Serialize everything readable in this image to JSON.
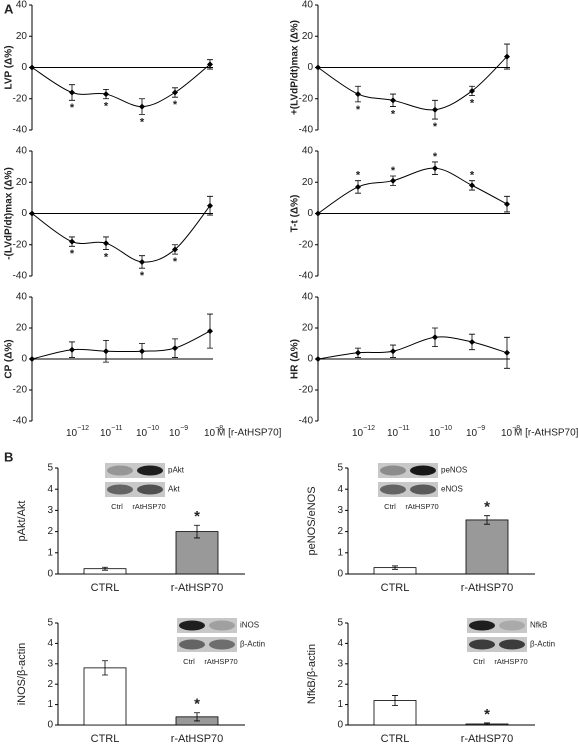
{
  "panels": [
    "A",
    "B"
  ],
  "chart_data": [
    {
      "type": "line",
      "ylabel": "LVP (Δ%)",
      "values": [
        0,
        -16,
        -17,
        -25,
        -16,
        2
      ],
      "errors": [
        null,
        5,
        3,
        5,
        3,
        3
      ],
      "markers": [
        null,
        "*",
        "*",
        "*",
        "*",
        null
      ],
      "ylim": [
        -40,
        40
      ],
      "yticks": [
        -40,
        -20,
        0,
        20,
        40
      ]
    },
    {
      "type": "line",
      "ylabel": "+(LVdP/dt)max (Δ%)",
      "values": [
        0,
        -17,
        -21,
        -27,
        -15,
        7
      ],
      "errors": [
        null,
        5,
        4,
        6,
        3,
        8
      ],
      "markers": [
        null,
        "*",
        "*",
        "*",
        "*",
        null
      ],
      "ylim": [
        -40,
        40
      ],
      "yticks": [
        -40,
        -20,
        0,
        20,
        40
      ]
    },
    {
      "type": "line",
      "ylabel": "-(LVdP/dt)max (Δ%)",
      "values": [
        0,
        -18,
        -19,
        -31,
        -23,
        5
      ],
      "errors": [
        null,
        3,
        4,
        4,
        3,
        6
      ],
      "markers": [
        null,
        "*",
        "*",
        "*",
        "*",
        null
      ],
      "ylim": [
        -40,
        40
      ],
      "yticks": [
        -40,
        -20,
        0,
        20,
        40
      ]
    },
    {
      "type": "line",
      "ylabel": "T-t (Δ%)",
      "values": [
        0,
        17,
        21,
        29,
        18,
        6
      ],
      "errors": [
        null,
        4,
        3,
        4,
        3,
        5
      ],
      "markers": [
        null,
        "*",
        "*",
        "*",
        "*",
        null
      ],
      "ylim": [
        -40,
        40
      ],
      "yticks": [
        -40,
        -20,
        0,
        20,
        40
      ]
    },
    {
      "type": "line",
      "ylabel": "CP (Δ%)",
      "values": [
        0,
        6,
        5,
        5,
        7,
        18
      ],
      "errors": [
        null,
        5,
        7,
        5,
        6,
        11
      ],
      "ylim": [
        -40,
        40
      ],
      "yticks": [
        -40,
        -20,
        0,
        20,
        40
      ],
      "categories": [
        null,
        {
          "base": "10",
          "exp": "−12"
        },
        {
          "base": "10",
          "exp": "−11"
        },
        {
          "base": "10",
          "exp": "−10"
        },
        {
          "base": "10",
          "exp": "−9"
        },
        {
          "base": "10",
          "exp": "−8"
        }
      ],
      "xlabel": "M [r-AtHSP70]"
    },
    {
      "type": "line",
      "ylabel": "HR (Δ%)",
      "values": [
        0,
        4,
        5,
        14,
        11,
        4
      ],
      "errors": [
        null,
        3,
        4,
        6,
        5,
        10
      ],
      "ylim": [
        -40,
        40
      ],
      "yticks": [
        -40,
        -20,
        0,
        20,
        40
      ],
      "categories": [
        null,
        {
          "base": "10",
          "exp": "−12"
        },
        {
          "base": "10",
          "exp": "−11"
        },
        {
          "base": "10",
          "exp": "−10"
        },
        {
          "base": "10",
          "exp": "−9"
        },
        {
          "base": "10",
          "exp": "−8"
        }
      ],
      "xlabel": "M [r-AtHSP70]"
    },
    {
      "type": "bar",
      "ylabel": "pAkt/Akt",
      "categories": [
        "CTRL",
        "r-AtHSP70"
      ],
      "values": [
        0.25,
        2.0
      ],
      "errors": [
        0.07,
        0.3
      ],
      "markers": [
        null,
        "*"
      ],
      "colors": [
        "#ffffff",
        "#999999"
      ],
      "ylim": [
        0,
        5
      ],
      "yticks": [
        0,
        1,
        2,
        3,
        4,
        5
      ],
      "blot": {
        "rows": [
          "pAkt",
          "Akt"
        ],
        "lanes": [
          "Ctrl",
          "rAtHSP70"
        ]
      }
    },
    {
      "type": "bar",
      "ylabel": "peNOS/eNOS",
      "categories": [
        "CTRL",
        "r-AtHSP70"
      ],
      "values": [
        0.3,
        2.55
      ],
      "errors": [
        0.08,
        0.2
      ],
      "markers": [
        null,
        "*"
      ],
      "colors": [
        "#ffffff",
        "#999999"
      ],
      "ylim": [
        0,
        5
      ],
      "yticks": [
        0,
        1,
        2,
        3,
        4,
        5
      ],
      "blot": {
        "rows": [
          "peNOS",
          "eNOS"
        ],
        "lanes": [
          "Ctrl",
          "rAtHSP70"
        ]
      }
    },
    {
      "type": "bar",
      "ylabel": "iNOS/β-actin",
      "categories": [
        "CTRL",
        "r-AtHSP70"
      ],
      "values": [
        2.8,
        0.4
      ],
      "errors": [
        0.35,
        0.2
      ],
      "markers": [
        null,
        "*"
      ],
      "colors": [
        "#ffffff",
        "#999999"
      ],
      "ylim": [
        0,
        5
      ],
      "yticks": [
        0,
        1,
        2,
        3,
        4,
        5
      ],
      "blot": {
        "rows": [
          "iNOS",
          "β-Actin"
        ],
        "lanes": [
          "Ctrl",
          "rAtHSP70"
        ]
      }
    },
    {
      "type": "bar",
      "ylabel": "NfkB/β-actin",
      "categories": [
        "CTRL",
        "r-AtHSP70"
      ],
      "values": [
        1.2,
        0.05
      ],
      "errors": [
        0.25,
        0.05
      ],
      "markers": [
        null,
        "*"
      ],
      "colors": [
        "#ffffff",
        "#999999"
      ],
      "ylim": [
        0,
        5
      ],
      "yticks": [
        0,
        1,
        2,
        3,
        4,
        5
      ],
      "blot": {
        "rows": [
          "NfkB",
          "β-Actin"
        ],
        "lanes": [
          "Ctrl",
          "rAtHSP70"
        ]
      }
    }
  ]
}
